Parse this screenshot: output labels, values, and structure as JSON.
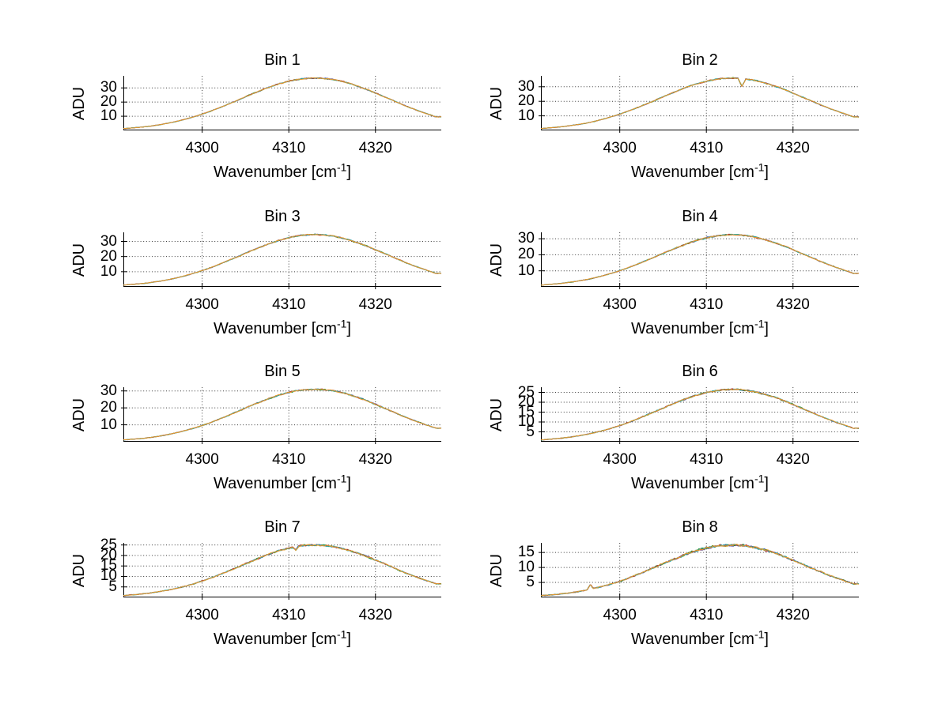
{
  "figure": {
    "background": "#ffffff",
    "type": "matlab-style multi-panel spectra figure"
  },
  "colors": {
    "axis": "#000000",
    "grid": "#3c3c3c",
    "series": [
      "#4444aa",
      "#22891e",
      "#b03030",
      "#2aa9a9",
      "#e9992c"
    ],
    "main_line": "#e9992c"
  },
  "chart_data": {
    "type": "line",
    "ylabel": "ADU",
    "xlabel": "Wavenumber [cm⁻¹]",
    "xlabel_base": "Wavenumber [cm",
    "xlabel_sup": "-1",
    "xlabel_close": "]",
    "grid": "dotted, on",
    "legend": "none",
    "xlim": [
      4290.9,
      4327.6
    ],
    "x": [
      4291,
      4294,
      4297,
      4300,
      4303,
      4306,
      4309,
      4312,
      4315,
      4318,
      4321,
      4324,
      4327
    ],
    "subplots": [
      {
        "title": "Bin 1",
        "xticks": [
          4300,
          4310,
          4320
        ],
        "yticks": [
          10,
          20,
          30
        ],
        "ylim": [
          0,
          38.5
        ],
        "peak": 37,
        "y": [
          1.3,
          3.0,
          6.3,
          11.5,
          18.5,
          26.3,
          33.1,
          36.7,
          36.0,
          31.1,
          23.8,
          16.0,
          9.5
        ],
        "features": []
      },
      {
        "title": "Bin 2",
        "xticks": [
          4300,
          4310,
          4320
        ],
        "yticks": [
          10,
          20,
          30
        ],
        "ylim": [
          0,
          37.5
        ],
        "peak": 36,
        "y": [
          1.3,
          3.0,
          6.1,
          11.2,
          18.0,
          25.6,
          32.2,
          35.7,
          35.0,
          30.3,
          23.1,
          15.6,
          9.3
        ],
        "features": [
          {
            "x": 4314.1,
            "dy": -5.5,
            "w": 0.45
          }
        ]
      },
      {
        "title": "Bin 3",
        "xticks": [
          4300,
          4310,
          4320
        ],
        "yticks": [
          10,
          20,
          30
        ],
        "ylim": [
          0,
          36.0
        ],
        "peak": 34.5,
        "y": [
          1.2,
          2.8,
          5.9,
          10.7,
          17.3,
          24.6,
          30.9,
          34.3,
          33.6,
          29.0,
          22.1,
          14.9,
          8.9
        ],
        "features": []
      },
      {
        "title": "Bin 4",
        "xticks": [
          4300,
          4310,
          4320
        ],
        "yticks": [
          10,
          20,
          30
        ],
        "ylim": [
          0,
          34.0
        ],
        "peak": 32.5,
        "y": [
          1.1,
          2.7,
          5.5,
          10.1,
          16.3,
          23.1,
          29.1,
          32.3,
          31.6,
          27.3,
          20.9,
          14.1,
          8.4
        ],
        "features": []
      },
      {
        "title": "Bin 5",
        "xticks": [
          4300,
          4310,
          4320
        ],
        "yticks": [
          10,
          20,
          30
        ],
        "ylim": [
          0,
          32.2
        ],
        "peak": 31,
        "y": [
          1.1,
          2.5,
          5.3,
          9.6,
          15.5,
          22.1,
          27.7,
          30.8,
          30.2,
          26.1,
          19.9,
          13.4,
          8.0
        ],
        "features": []
      },
      {
        "title": "Bin 6",
        "xticks": [
          4300,
          4310,
          4320
        ],
        "yticks": [
          5,
          10,
          15,
          20,
          25
        ],
        "ylim": [
          0,
          27.6
        ],
        "peak": 26.5,
        "y": [
          0.9,
          2.2,
          4.5,
          8.2,
          13.3,
          18.9,
          23.7,
          26.3,
          25.8,
          22.3,
          17.0,
          11.5,
          6.8
        ],
        "features": []
      },
      {
        "title": "Bin 7",
        "xticks": [
          4300,
          4310,
          4320
        ],
        "yticks": [
          5,
          10,
          15,
          20,
          25
        ],
        "ylim": [
          0,
          26.0
        ],
        "peak": 25,
        "y": [
          0.9,
          2.1,
          4.3,
          7.8,
          12.5,
          17.8,
          22.4,
          24.8,
          24.3,
          21.0,
          16.1,
          10.8,
          6.5
        ],
        "features": [
          {
            "x": 4310.8,
            "dy": -1.6,
            "w": 0.35
          }
        ]
      },
      {
        "title": "Bin 8",
        "xticks": [
          4300,
          4310,
          4320
        ],
        "yticks": [
          5,
          10,
          15
        ],
        "ylim": [
          0,
          18.2
        ],
        "peak": 17.5,
        "y": [
          0.6,
          1.4,
          3.0,
          5.4,
          8.8,
          12.5,
          15.7,
          17.4,
          17.0,
          14.7,
          11.2,
          7.6,
          4.5
        ],
        "features": [
          {
            "x": 4296.6,
            "dy": 1.6,
            "w": 0.35
          }
        ]
      }
    ]
  }
}
